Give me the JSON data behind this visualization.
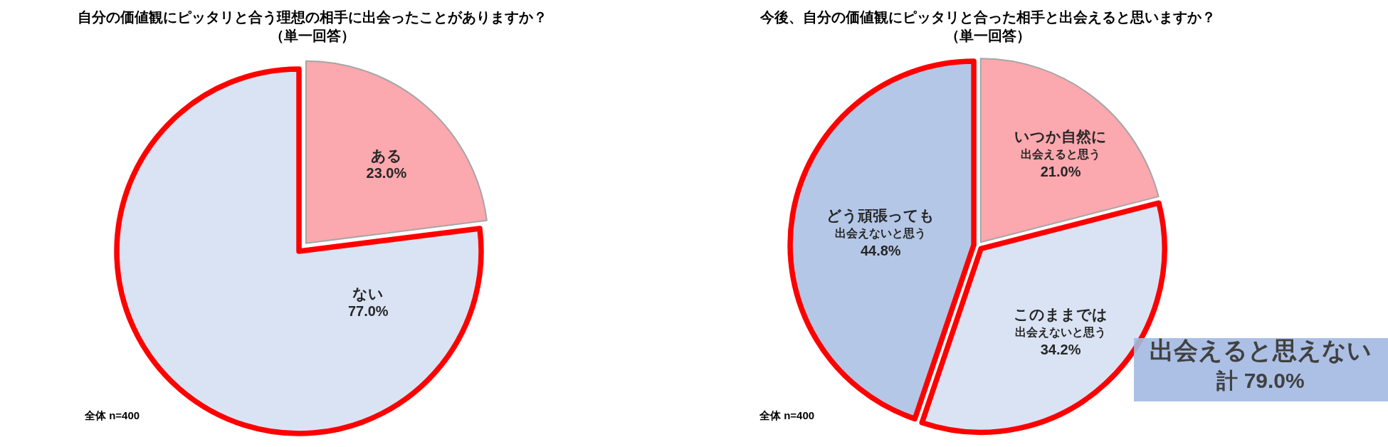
{
  "chart_data": [
    {
      "type": "pie",
      "title": "自分の価値観にピッタリと合う理想の相手に出会ったことがありますか？",
      "subtitle": "（単一回答）",
      "categories": [
        "ある",
        "ない"
      ],
      "values": [
        23.0,
        77.0
      ],
      "colors": [
        "#fba8ae",
        "#dae3f3"
      ],
      "value_labels": [
        "23.0%",
        "77.0%"
      ],
      "annotations": [
        "全体 n=400"
      ]
    },
    {
      "type": "pie",
      "title": "今後、自分の価値観にピッタリと合った相手と出会えると思いますか？",
      "subtitle": "（単一回答）",
      "categories": [
        "いつか自然に出会えると思う",
        "このままでは出会えないと思う",
        "どう頑張っても出会えないと思う"
      ],
      "values": [
        21.0,
        34.2,
        44.8
      ],
      "colors": [
        "#fba8ae",
        "#dae3f3",
        "#b4c7e7"
      ],
      "value_labels": [
        "21.0%",
        "34.2%",
        "44.8%"
      ],
      "annotations": [
        "全体 n=400",
        "出会えると思えない計 79.0%"
      ]
    }
  ]
}
